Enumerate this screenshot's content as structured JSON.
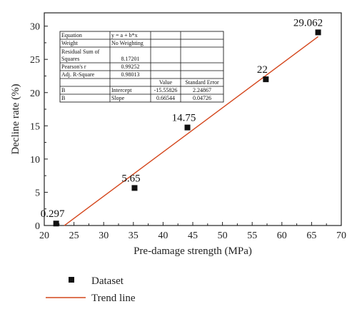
{
  "chart_data": {
    "type": "scatter",
    "xlabel": "Pre-damage strength (MPa)",
    "ylabel": "Decline rate (%)",
    "xlim": [
      20,
      70
    ],
    "ylim": [
      0,
      32
    ],
    "x_ticks": [
      20,
      25,
      30,
      35,
      40,
      45,
      50,
      55,
      60,
      65,
      70
    ],
    "y_ticks": [
      0,
      5,
      10,
      15,
      20,
      25,
      30
    ],
    "grid": false,
    "legend_placement": "bottom-left",
    "series": [
      {
        "name": "Dataset",
        "kind": "points",
        "marker": "square",
        "color": "#111111",
        "points": [
          {
            "x": 22.0,
            "y": 0.297,
            "label": "0.297"
          },
          {
            "x": 35.2,
            "y": 5.65,
            "label": "5.65"
          },
          {
            "x": 44.1,
            "y": 14.75,
            "label": "14.75"
          },
          {
            "x": 57.3,
            "y": 22,
            "label": "22"
          },
          {
            "x": 66.1,
            "y": 29.062,
            "label": "29.062"
          }
        ]
      },
      {
        "name": "Trend line",
        "kind": "line",
        "color": "#d4461c",
        "intercept": -15.55826,
        "slope": 0.66544,
        "x_range": [
          23.38,
          66.1
        ]
      }
    ],
    "fit_table": {
      "rows": [
        [
          "Equation",
          "y = a + b*x",
          "",
          ""
        ],
        [
          "Weight",
          "No Weighting",
          "",
          ""
        ],
        [
          "Residual Sum of Squares",
          "8.17201",
          "",
          ""
        ],
        [
          "Pearson's r",
          "0.99252",
          "",
          ""
        ],
        [
          "Adj. R-Square",
          "0.98013",
          "",
          ""
        ],
        [
          "",
          "",
          "Value",
          "Standard Error"
        ],
        [
          "B",
          "Intercept",
          "-15.55826",
          "2.24867"
        ],
        [
          "B",
          "Slope",
          "0.66544",
          "0.04726"
        ]
      ]
    }
  }
}
